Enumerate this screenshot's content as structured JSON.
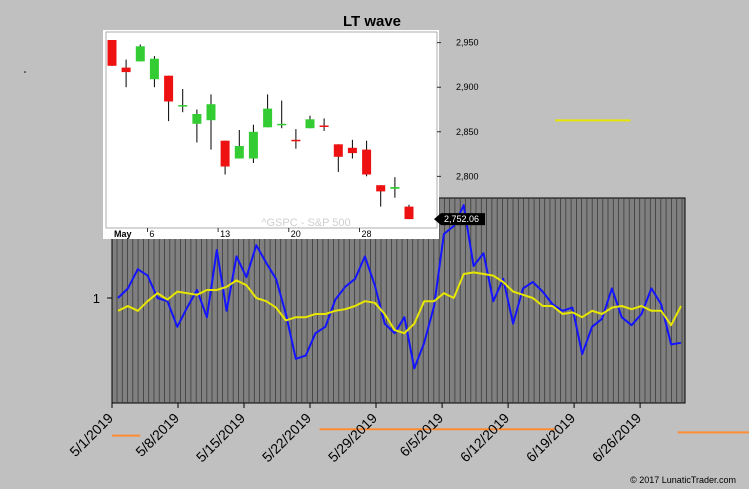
{
  "chart_data": [
    {
      "type": "candlestick",
      "title": "LT wave",
      "watermark": "^GSPC - S&P 500",
      "month_label": "May",
      "x_tick_labels": [
        "6",
        "13",
        "20",
        "28"
      ],
      "y_tick_labels": [
        "2,950",
        "2,900",
        "2,850",
        "2,800"
      ],
      "ylim": [
        2742,
        2962
      ],
      "last_price_label": "2,752.06",
      "colors": {
        "up": "#33cc33",
        "down": "#ee1111"
      },
      "candles": [
        {
          "date": "2019-05-01",
          "open": 2953,
          "high": 2953,
          "low": 2924,
          "close": 2924
        },
        {
          "date": "2019-05-02",
          "open": 2922,
          "high": 2931,
          "low": 2900,
          "close": 2917
        },
        {
          "date": "2019-05-03",
          "open": 2929,
          "high": 2948,
          "low": 2929,
          "close": 2946
        },
        {
          "date": "2019-05-06",
          "open": 2909,
          "high": 2935,
          "low": 2900,
          "close": 2932
        },
        {
          "date": "2019-05-07",
          "open": 2913,
          "high": 2913,
          "low": 2862,
          "close": 2884
        },
        {
          "date": "2019-05-08",
          "open": 2880,
          "high": 2898,
          "low": 2872,
          "close": 2880
        },
        {
          "date": "2019-05-09",
          "open": 2859,
          "high": 2875,
          "low": 2838,
          "close": 2870
        },
        {
          "date": "2019-05-10",
          "open": 2863,
          "high": 2892,
          "low": 2830,
          "close": 2881
        },
        {
          "date": "2019-05-13",
          "open": 2840,
          "high": 2840,
          "low": 2802,
          "close": 2811
        },
        {
          "date": "2019-05-14",
          "open": 2820,
          "high": 2852,
          "low": 2820,
          "close": 2834
        },
        {
          "date": "2019-05-15",
          "open": 2820,
          "high": 2858,
          "low": 2815,
          "close": 2850
        },
        {
          "date": "2019-05-16",
          "open": 2855,
          "high": 2892,
          "low": 2855,
          "close": 2876
        },
        {
          "date": "2019-05-17",
          "open": 2858,
          "high": 2885,
          "low": 2854,
          "close": 2859
        },
        {
          "date": "2019-05-20",
          "open": 2841,
          "high": 2853,
          "low": 2831,
          "close": 2840
        },
        {
          "date": "2019-05-21",
          "open": 2854,
          "high": 2868,
          "low": 2854,
          "close": 2864
        },
        {
          "date": "2019-05-22",
          "open": 2857,
          "high": 2865,
          "low": 2851,
          "close": 2856
        },
        {
          "date": "2019-05-23",
          "open": 2836,
          "high": 2836,
          "low": 2805,
          "close": 2822
        },
        {
          "date": "2019-05-24",
          "open": 2832,
          "high": 2841,
          "low": 2820,
          "close": 2826
        },
        {
          "date": "2019-05-28",
          "open": 2830,
          "high": 2840,
          "low": 2800,
          "close": 2802
        },
        {
          "date": "2019-05-29",
          "open": 2790,
          "high": 2790,
          "low": 2766,
          "close": 2783
        },
        {
          "date": "2019-05-30",
          "open": 2786,
          "high": 2799,
          "low": 2776,
          "close": 2788
        },
        {
          "date": "2019-05-31",
          "open": 2766,
          "high": 2768,
          "low": 2752,
          "close": 2752
        }
      ]
    },
    {
      "type": "line",
      "y_tick_labels": [
        "1"
      ],
      "x_tick_labels": [
        "5/1/2019",
        "5/8/2019",
        "5/15/2019",
        "5/22/2019",
        "5/29/2019",
        "6/5/2019",
        "6/12/2019",
        "6/19/2019",
        "6/26/2019"
      ],
      "x_days_start": "2019-05-01",
      "ylim": [
        0,
        2
      ],
      "series": [
        {
          "color": "#1414ff",
          "values": [
            1.0,
            1.06,
            1.18,
            1.14,
            1.0,
            0.98,
            0.82,
            0.94,
            1.05,
            0.88,
            1.3,
            0.92,
            1.26,
            1.13,
            1.33,
            1.22,
            1.12,
            0.9,
            0.62,
            0.64,
            0.78,
            0.82,
            0.99,
            1.07,
            1.12,
            1.26,
            1.08,
            0.84,
            0.78,
            0.88,
            0.56,
            0.72,
            0.95,
            1.4,
            1.45,
            1.58,
            1.2,
            1.28,
            0.98,
            1.12,
            0.84,
            1.06,
            1.1,
            1.04,
            0.96,
            0.92,
            0.94,
            0.65,
            0.82,
            0.87,
            1.06,
            0.88,
            0.83,
            0.9,
            1.06,
            0.96,
            0.71,
            0.72
          ]
        },
        {
          "color": "#e6e600",
          "values": [
            0.92,
            0.95,
            0.92,
            0.98,
            1.03,
            0.99,
            1.04,
            1.03,
            1.02,
            1.05,
            1.05,
            1.07,
            1.11,
            1.08,
            1.0,
            0.98,
            0.94,
            0.86,
            0.88,
            0.88,
            0.9,
            0.9,
            0.92,
            0.93,
            0.95,
            0.98,
            0.97,
            0.9,
            0.8,
            0.78,
            0.84,
            0.98,
            0.98,
            1.03,
            1.0,
            1.15,
            1.16,
            1.15,
            1.14,
            1.1,
            1.04,
            1.02,
            1.0,
            0.95,
            0.95,
            0.9,
            0.91,
            0.88,
            0.92,
            0.9,
            0.94,
            0.95,
            0.93,
            0.95,
            0.92,
            0.92,
            0.83,
            0.95
          ]
        }
      ],
      "reference_levels": [
        {
          "color": "#e6e600",
          "value": 1.9,
          "from_day": 13,
          "to_day": 21
        },
        {
          "color": "#e6e600",
          "value": 2.11,
          "from_day": 47,
          "to_day": 55
        },
        {
          "color": "#ff8c33",
          "value": 0.14,
          "from_day": 0,
          "to_day": 3
        },
        {
          "color": "#ff8c33",
          "value": 0.18,
          "from_day": 22,
          "to_day": 47
        },
        {
          "color": "#ff8c33",
          "value": 0.16,
          "from_day": 60,
          "to_day": 87
        }
      ]
    }
  ],
  "footer": {
    "copyright": "© 2017 LunaticTrader.com"
  }
}
